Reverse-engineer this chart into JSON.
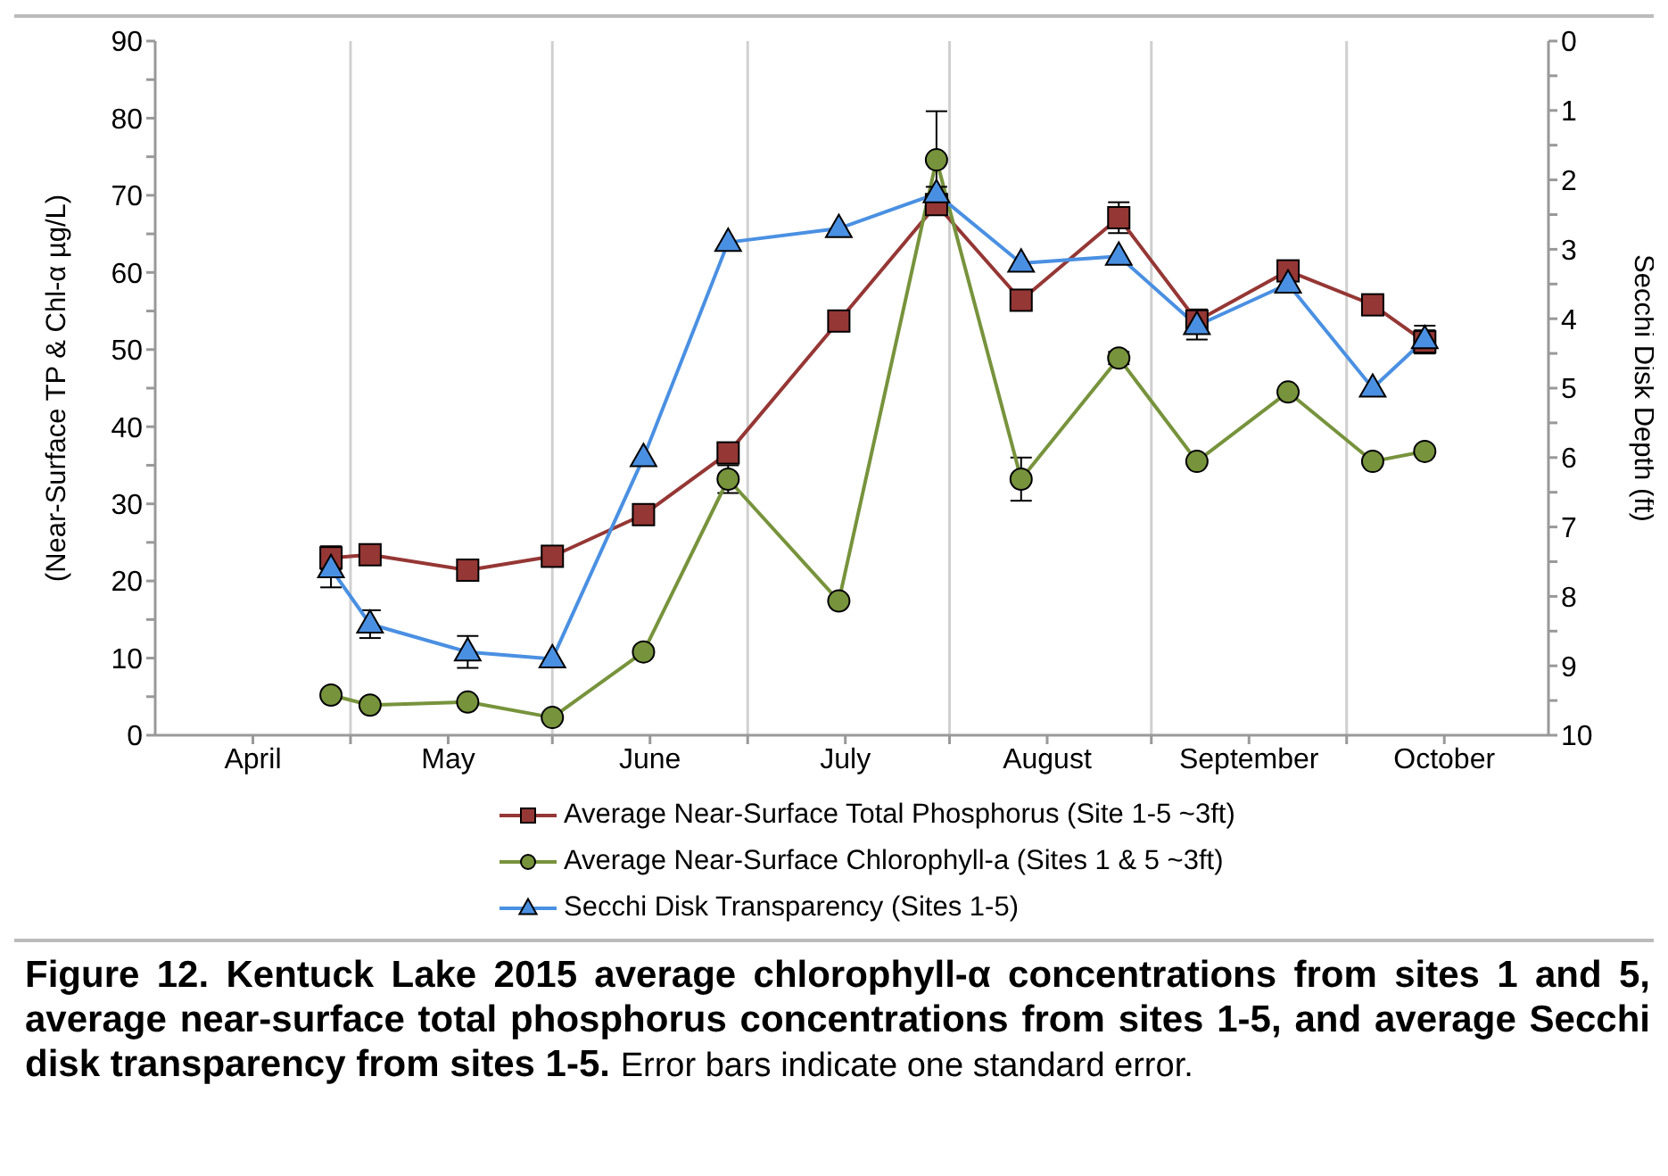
{
  "chart_data": {
    "type": "line",
    "title": "Figure 12. Kentuck Lake 2015 average chlorophyll-α concentrations from sites 1 and 5, average near-surface total phosphorus concentrations from sites 1-5, and average Secchi disk transparency from sites 1-5.",
    "annotations": [
      "Error bars indicate one standard error."
    ],
    "ylabel": "(Near-Surface TP & Chl-α µg/L)",
    "y2label": "Secchi Disk Depth (ft)",
    "x": [
      "2015-04-28",
      "2015-05-04",
      "2015-05-19",
      "2015-06-01",
      "2015-06-15",
      "2015-06-28",
      "2015-07-15",
      "2015-07-30",
      "2015-08-12",
      "2015-08-27",
      "2015-09-08",
      "2015-09-22",
      "2015-10-05",
      "2015-10-13"
    ],
    "xlim": [
      "2015-04-01",
      "2015-11-01"
    ],
    "xticks": [
      {
        "value": "2015-04-16",
        "label": "April"
      },
      {
        "value": "2015-05-01",
        "label": null
      },
      {
        "value": "2015-05-16",
        "label": "May"
      },
      {
        "value": "2015-06-01",
        "label": null
      },
      {
        "value": "2015-06-16",
        "label": "June"
      },
      {
        "value": "2015-07-01",
        "label": null
      },
      {
        "value": "2015-07-16",
        "label": "July"
      },
      {
        "value": "2015-08-01",
        "label": null
      },
      {
        "value": "2015-08-16",
        "label": "August"
      },
      {
        "value": "2015-09-01",
        "label": null
      },
      {
        "value": "2015-09-16",
        "label": "September"
      },
      {
        "value": "2015-10-01",
        "label": null
      },
      {
        "value": "2015-10-16",
        "label": "October"
      }
    ],
    "ylim": [
      0,
      90
    ],
    "yticks": [
      0,
      {
        "value": 5,
        "label": null
      },
      10,
      {
        "value": 15,
        "label": null
      },
      20,
      {
        "value": 25,
        "label": null
      },
      30,
      {
        "value": 35,
        "label": null
      },
      40,
      {
        "value": 45,
        "label": null
      },
      50,
      {
        "value": 55,
        "label": null
      },
      60,
      {
        "value": 65,
        "label": null
      },
      70,
      {
        "value": 75,
        "label": null
      },
      80,
      {
        "value": 85,
        "label": null
      },
      90
    ],
    "y2lim": [
      10,
      0
    ],
    "y2ticks": [
      0,
      {
        "value": 0.5,
        "label": null
      },
      1,
      {
        "value": 1.5,
        "label": null
      },
      2,
      {
        "value": 2.5,
        "label": null
      },
      3,
      {
        "value": 3.5,
        "label": null
      },
      4,
      {
        "value": 4.5,
        "label": null
      },
      5,
      {
        "value": 5.5,
        "label": null
      },
      6,
      {
        "value": 6.5,
        "label": null
      },
      7,
      {
        "value": 7.5,
        "label": null
      },
      8,
      {
        "value": 8.5,
        "label": null
      },
      9,
      {
        "value": 9.5,
        "label": null
      },
      10
    ],
    "grid": "x",
    "legend": "bottom",
    "line_style": "solid",
    "series": [
      {
        "name": "Average Near-Surface Total Phosphorus (Site 1-5 ~3ft)",
        "color": "#953735",
        "marker": "square",
        "values": [
          23.0,
          23.4,
          21.4,
          23.2,
          28.6,
          36.6,
          53.7,
          68.8,
          56.4,
          67.1,
          53.7,
          60.2,
          55.8,
          51.0
        ],
        "errors": [
          1.5,
          null,
          null,
          null,
          null,
          null,
          null,
          1,
          null,
          2,
          1.5,
          null,
          null,
          1.5
        ]
      },
      {
        "name": "Average Near-Surface Chlorophyll-a (Sites 1 & 5 ~3ft)",
        "color": "#77933c",
        "marker": "circle",
        "values": [
          5.2,
          3.9,
          4.3,
          2.3,
          10.8,
          33.2,
          17.4,
          74.6,
          33.2,
          48.9,
          35.5,
          44.5,
          35.5,
          36.8
        ],
        "errors": [
          null,
          null,
          null,
          null,
          null,
          1.8,
          null,
          6.3,
          2.8,
          0.8,
          null,
          null,
          null,
          null
        ]
      },
      {
        "name": "Secchi Disk Transparency (Sites 1-5)",
        "color": "#4a90e2",
        "marker": "triangle",
        "axis": "y2",
        "values": [
          7.6,
          8.4,
          8.8,
          8.9,
          6.0,
          2.9,
          2.7,
          2.2,
          3.2,
          3.1,
          4.1,
          3.5,
          5.0,
          4.3
        ],
        "errors": [
          0.27,
          0.2,
          0.23,
          null,
          null,
          null,
          null,
          0.1,
          null,
          null,
          0.2,
          null,
          null,
          0.2
        ]
      }
    ]
  }
}
